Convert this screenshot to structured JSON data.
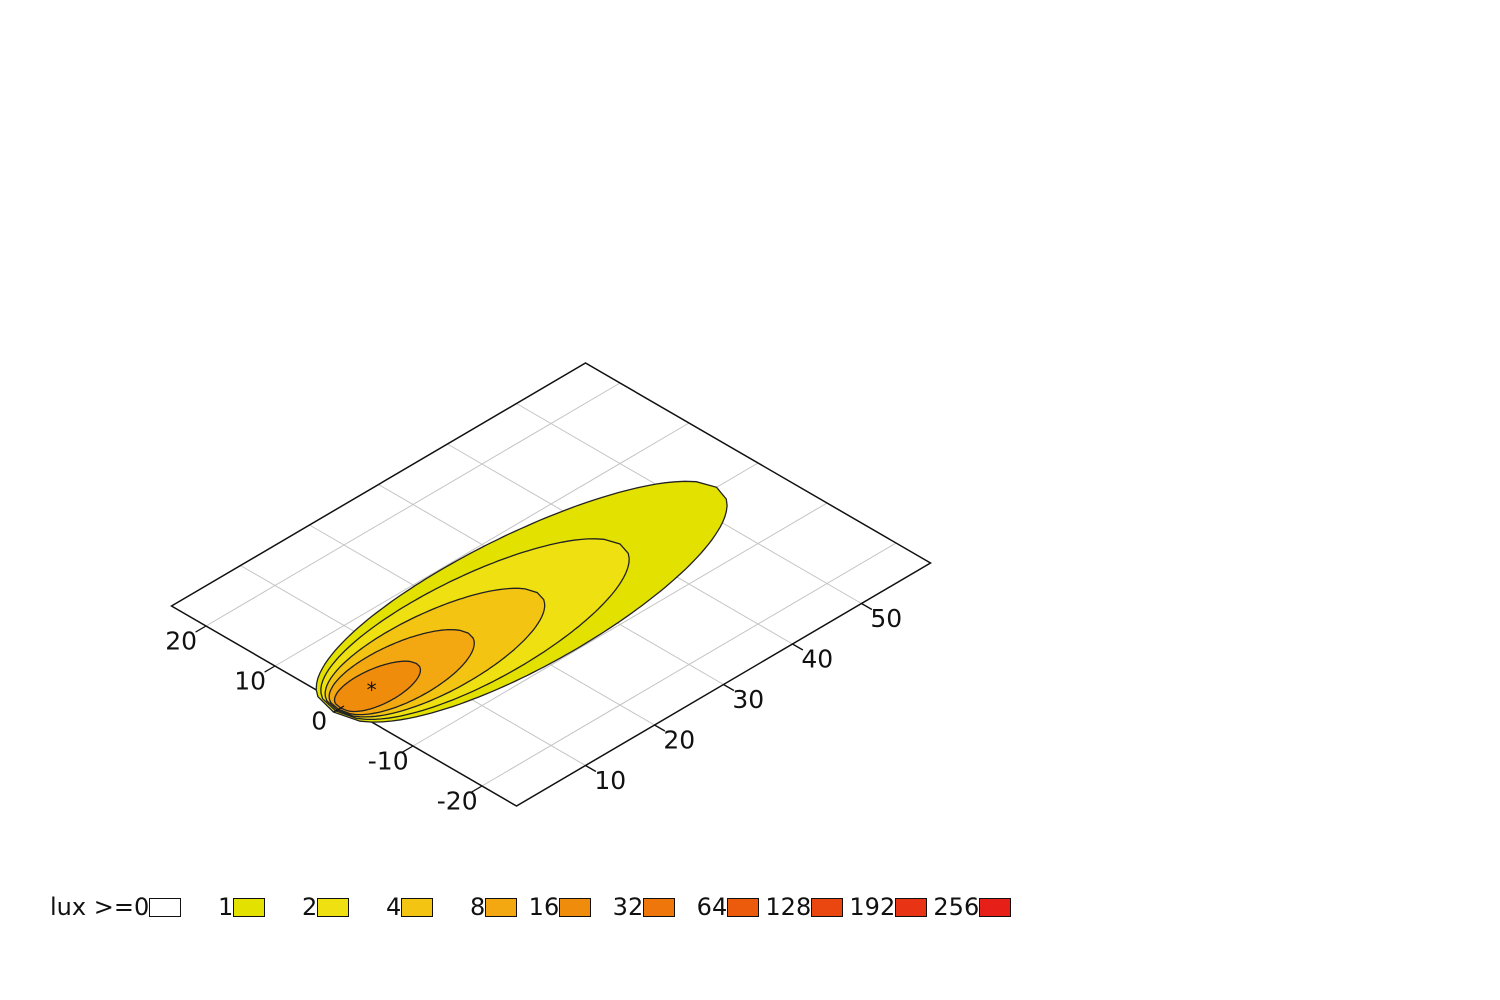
{
  "chart_data": {
    "type": "contour",
    "unit_prefix": "lux >=",
    "x_axis": {
      "ticks": [
        10,
        20,
        30,
        40,
        50
      ],
      "range": [
        0,
        60
      ]
    },
    "y_axis": {
      "ticks": [
        20,
        10,
        0,
        -10,
        -20
      ],
      "range": [
        -25,
        25
      ]
    },
    "levels": [
      {
        "label": "0",
        "color": "#ffffff"
      },
      {
        "label": "1",
        "color": "#e3e100"
      },
      {
        "label": "2",
        "color": "#efe012"
      },
      {
        "label": "4",
        "color": "#f3c412"
      },
      {
        "label": "8",
        "color": "#f3a812"
      },
      {
        "label": "16",
        "color": "#f08c0b"
      },
      {
        "label": "32",
        "color": "#ee760a"
      },
      {
        "label": "64",
        "color": "#ec5b0c"
      },
      {
        "label": "128",
        "color": "#ea460f"
      },
      {
        "label": "192",
        "color": "#e83414"
      },
      {
        "label": "256",
        "color": "#e62019"
      }
    ],
    "contours": [
      {
        "level": "1",
        "x_range": [
          -1.5,
          54
        ],
        "half_width": 13
      },
      {
        "level": "2",
        "x_range": [
          -1.2,
          40
        ],
        "half_width": 10.5
      },
      {
        "level": "4",
        "x_range": [
          -1.0,
          28
        ],
        "half_width": 8
      },
      {
        "level": "8",
        "x_range": [
          -0.8,
          18
        ],
        "half_width": 5.8
      },
      {
        "level": "16",
        "x_range": [
          -0.5,
          10.5
        ],
        "half_width": 3.6
      }
    ],
    "source_marker": {
      "symbol": "*",
      "x": 4,
      "y": 0
    }
  }
}
